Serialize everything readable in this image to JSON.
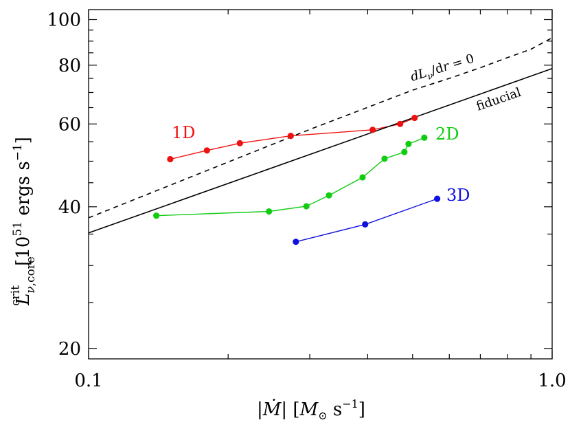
{
  "chart_data": {
    "type": "line",
    "xscale": "log",
    "yscale": "log",
    "xlim": [
      0.1,
      1.0
    ],
    "ylim": [
      19,
      105
    ],
    "x_ticks": [
      "0.1",
      "1.0"
    ],
    "y_ticks": [
      "20",
      "40",
      "60",
      "80",
      "100"
    ],
    "xlabel": "|Ṁ| [M⊙ s⁻¹]",
    "ylabel": "L^crit_ν,core [10⁵¹ ergs s⁻¹]",
    "series": [
      {
        "name": "1D",
        "color": "#ee1111",
        "style": "line-markers",
        "x": [
          0.15,
          0.18,
          0.212,
          0.273,
          0.41,
          0.47,
          0.505
        ],
        "y": [
          50.5,
          52.7,
          54.6,
          56.6,
          58.3,
          60.0,
          61.8
        ]
      },
      {
        "name": "2D",
        "color": "#11cc11",
        "style": "line-markers",
        "x": [
          0.14,
          0.245,
          0.295,
          0.33,
          0.39,
          0.435,
          0.48,
          0.49,
          0.53
        ],
        "y": [
          38.3,
          39.1,
          40.1,
          42.3,
          46.2,
          50.6,
          52.3,
          54.4,
          56.1
        ]
      },
      {
        "name": "3D",
        "color": "#1111dd",
        "style": "line-markers",
        "x": [
          0.28,
          0.395,
          0.565
        ],
        "y": [
          33.7,
          36.7,
          41.6
        ]
      },
      {
        "name": "fiducial",
        "color": "#000000",
        "style": "solid",
        "x": [
          0.1,
          1.0
        ],
        "y": [
          35.2,
          78.7
        ]
      },
      {
        "name": "dLν/dr = 0",
        "color": "#000000",
        "style": "dashed",
        "x": [
          0.1,
          0.3,
          0.5,
          0.6,
          0.7,
          0.8,
          0.9,
          1.0
        ],
        "y": [
          37.9,
          58.4,
          70.8,
          75.0,
          79.0,
          83.0,
          86.5,
          91.5
        ]
      }
    ],
    "annotations": {
      "fiducial": "fiducial",
      "dashed": "dLν/dr = 0"
    }
  }
}
